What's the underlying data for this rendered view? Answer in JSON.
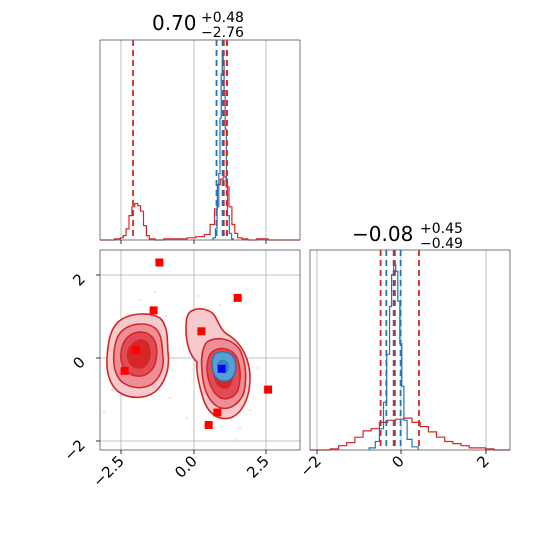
{
  "chart_data": {
    "type": "corner",
    "parameters": [
      "",
      ""
    ],
    "colors": {
      "primary": "#d62728",
      "secondary": "#1f77b4",
      "marker": "#ff0000",
      "truth": "#0000ff"
    },
    "panels": [
      {
        "id": "hist_x",
        "type": "histogram",
        "title": {
          "median": "0.70",
          "plus": "+0.48",
          "minus": "−2.76"
        },
        "xlim": [
          -3.2,
          3.7
        ],
        "vlines_red": [
          -2.06,
          1.07,
          1.18
        ],
        "vlines_blue": [
          0.82,
          1.03,
          1.18
        ],
        "series": [
          {
            "name": "",
            "color": "#d62728",
            "bins": [
              -3.2,
              -2.7,
              -2.5,
              -2.4,
              -2.3,
              -2.2,
              -2.1,
              -2.0,
              -1.9,
              -1.8,
              -1.7,
              -1.6,
              -1.5,
              -1.3,
              -1.0,
              -0.6,
              -0.2,
              0.1,
              0.4,
              0.6,
              0.75,
              0.85,
              0.95,
              1.05,
              1.15,
              1.25,
              1.35,
              1.45,
              1.55,
              1.7,
              1.9,
              2.2,
              2.6,
              3.0,
              3.7
            ],
            "counts": [
              0,
              1,
              2,
              4,
              10,
              22,
              30,
              33,
              31,
              26,
              13,
              4,
              1,
              0,
              1,
              1,
              2,
              3,
              5,
              14,
              28,
              50,
              55,
              57,
              48,
              30,
              14,
              6,
              2,
              1,
              0,
              1,
              0,
              0
            ]
          },
          {
            "name": "",
            "color": "#1f77b4",
            "bins": [
              0.7,
              0.78,
              0.84,
              0.9,
              0.94,
              0.98,
              1.02,
              1.05,
              1.08,
              1.12,
              1.16,
              1.2,
              1.26,
              1.34,
              1.4
            ],
            "counts": [
              2,
              10,
              30,
              60,
              110,
              150,
              168,
              162,
              135,
              100,
              55,
              22,
              6,
              1
            ]
          }
        ]
      },
      {
        "id": "joint",
        "type": "contour",
        "xlim": [
          -3.2,
          3.7
        ],
        "ylim": [
          -2.2,
          2.6
        ],
        "red_points": [
          [
            -1.15,
            2.3
          ],
          [
            1.55,
            1.45
          ],
          [
            -1.35,
            1.15
          ],
          [
            0.3,
            0.65
          ],
          [
            -1.95,
            0.2
          ],
          [
            -2.35,
            -0.3
          ],
          [
            2.6,
            -0.75
          ],
          [
            0.85,
            -1.3
          ],
          [
            0.55,
            -1.6
          ]
        ],
        "truth_point": [
          1.0,
          -0.25
        ]
      },
      {
        "id": "hist_y",
        "type": "histogram",
        "title": {
          "median": "−0.08",
          "plus": "+0.45",
          "minus": "−0.49"
        },
        "xlim": [
          -2.3,
          2.6
        ],
        "vlines_red": [
          -0.57,
          -0.25,
          0.37
        ],
        "vlines_blue": [
          -0.43,
          -0.22,
          -0.08
        ],
        "series": [
          {
            "name": "",
            "color": "#d62728",
            "bins": [
              -2.3,
              -1.8,
              -1.6,
              -1.4,
              -1.2,
              -1.0,
              -0.8,
              -0.6,
              -0.4,
              -0.2,
              0.0,
              0.2,
              0.4,
              0.6,
              0.8,
              1.0,
              1.2,
              1.4,
              1.6,
              1.8,
              2.0,
              2.2,
              2.6
            ],
            "counts": [
              0,
              1,
              4,
              7,
              12,
              18,
              20,
              26,
              28,
              29,
              30,
              26,
              22,
              17,
              12,
              8,
              6,
              4,
              2,
              2,
              1,
              0
            ]
          },
          {
            "name": "",
            "color": "#1f77b4",
            "bins": [
              -0.85,
              -0.7,
              -0.6,
              -0.5,
              -0.42,
              -0.35,
              -0.3,
              -0.25,
              -0.2,
              -0.15,
              -0.1,
              -0.05,
              0.0,
              0.08,
              0.2,
              0.35
            ],
            "counts": [
              2,
              8,
              20,
              45,
              90,
              135,
              165,
              175,
              168,
              140,
              100,
              60,
              28,
              10,
              3
            ]
          }
        ]
      }
    ]
  },
  "ticks": {
    "x": [
      "−2.5",
      "0.0",
      "2.5"
    ],
    "y": [
      "−2",
      "0",
      "2"
    ],
    "x2": [
      "−2",
      "0",
      "2"
    ]
  }
}
